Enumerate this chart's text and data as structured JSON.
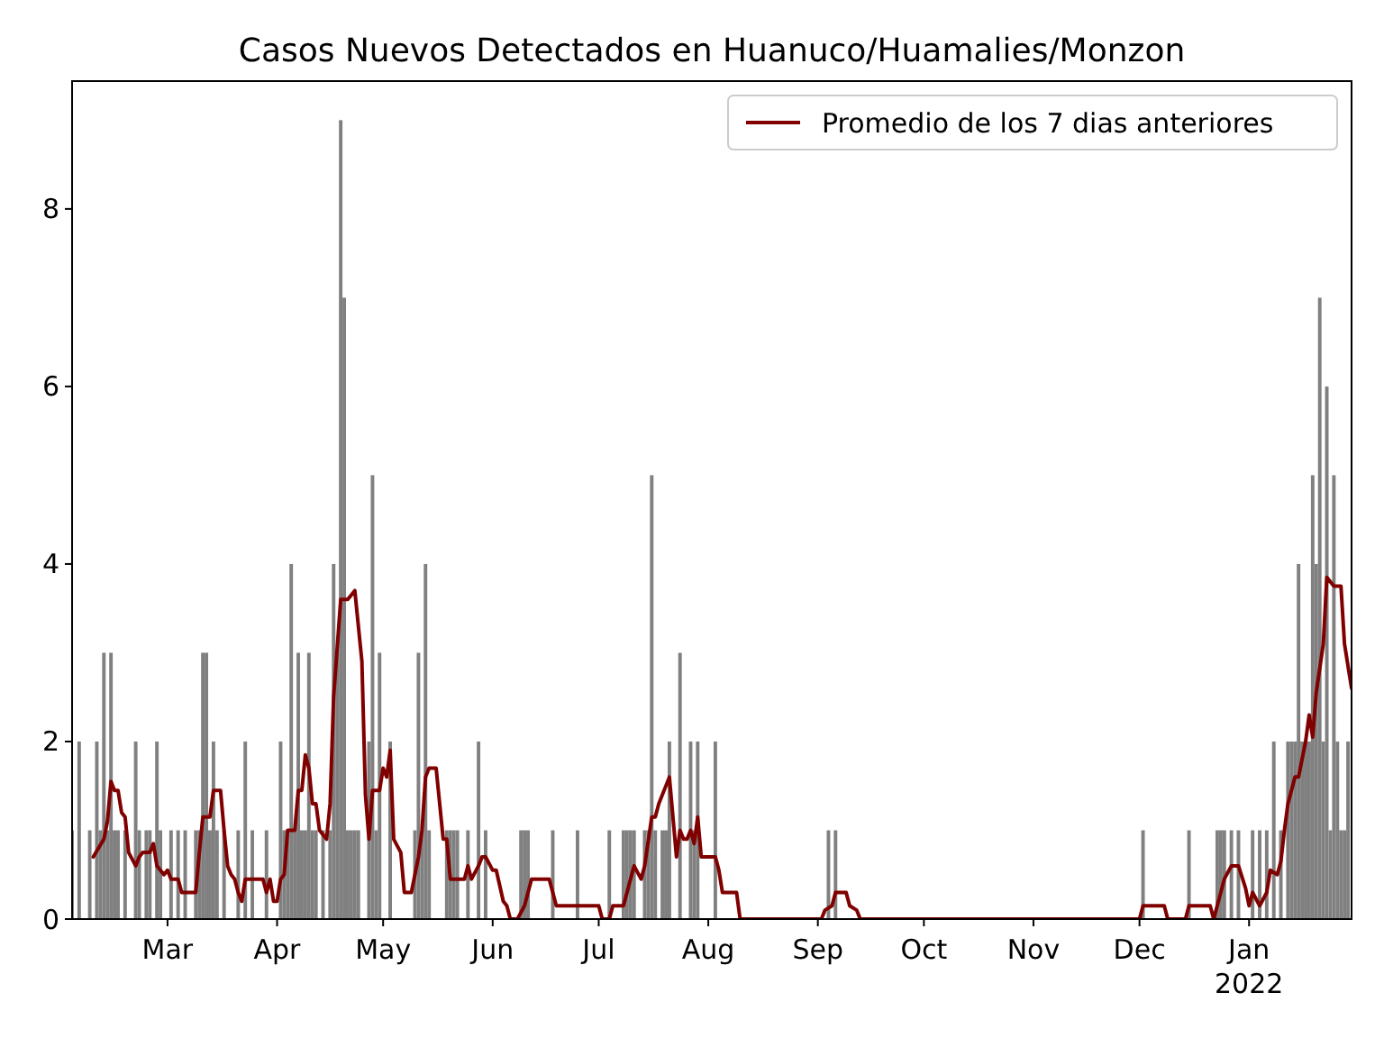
{
  "chart_data": {
    "type": "bar",
    "title": "Casos Nuevos Detectados en Huanuco/Huamalies/Monzon",
    "xlim": [
      "2021-02-02",
      "2022-01-30"
    ],
    "ylim": [
      0,
      9.44
    ],
    "yticks": [
      0,
      2,
      4,
      6,
      8
    ],
    "xticks": [
      {
        "value": "2021-03-01",
        "label": "Mar"
      },
      {
        "value": "2021-04-01",
        "label": "Apr"
      },
      {
        "value": "2021-05-01",
        "label": "May"
      },
      {
        "value": "2021-06-01",
        "label": "Jun"
      },
      {
        "value": "2021-07-01",
        "label": "Jul"
      },
      {
        "value": "2021-08-01",
        "label": "Aug"
      },
      {
        "value": "2021-09-01",
        "label": "Sep"
      },
      {
        "value": "2021-10-01",
        "label": "Oct"
      },
      {
        "value": "2021-11-01",
        "label": "Nov"
      },
      {
        "value": "2021-12-01",
        "label": "Dec"
      },
      {
        "value": "2022-01-01",
        "label": "Jan\n2022"
      }
    ],
    "legend": "top right",
    "grid": false,
    "series": [
      {
        "color": "#808080",
        "x": [
          "2021-02-02",
          "2021-02-04",
          "2021-02-07",
          "2021-02-09",
          "2021-02-10",
          "2021-02-11",
          "2021-02-12",
          "2021-02-13",
          "2021-02-14",
          "2021-02-15",
          "2021-02-17",
          "2021-02-20",
          "2021-02-21",
          "2021-02-23",
          "2021-02-24",
          "2021-02-26",
          "2021-02-27",
          "2021-03-02",
          "2021-03-04",
          "2021-03-06",
          "2021-03-09",
          "2021-03-10",
          "2021-03-11",
          "2021-03-12",
          "2021-03-13",
          "2021-03-14",
          "2021-03-15",
          "2021-03-17",
          "2021-03-21",
          "2021-03-23",
          "2021-03-25",
          "2021-03-29",
          "2021-04-02",
          "2021-04-03",
          "2021-04-04",
          "2021-04-05",
          "2021-04-06",
          "2021-04-07",
          "2021-04-08",
          "2021-04-09",
          "2021-04-10",
          "2021-04-11",
          "2021-04-12",
          "2021-04-14",
          "2021-04-16",
          "2021-04-17",
          "2021-04-18",
          "2021-04-19",
          "2021-04-20",
          "2021-04-21",
          "2021-04-22",
          "2021-04-23",
          "2021-04-24",
          "2021-04-27",
          "2021-04-28",
          "2021-04-29",
          "2021-04-30",
          "2021-05-03",
          "2021-05-10",
          "2021-05-11",
          "2021-05-12",
          "2021-05-13",
          "2021-05-14",
          "2021-05-19",
          "2021-05-20",
          "2021-05-21",
          "2021-05-22",
          "2021-05-25",
          "2021-05-28",
          "2021-05-30",
          "2021-06-09",
          "2021-06-10",
          "2021-06-11",
          "2021-06-18",
          "2021-06-25",
          "2021-07-04",
          "2021-07-08",
          "2021-07-09",
          "2021-07-10",
          "2021-07-11",
          "2021-07-14",
          "2021-07-15",
          "2021-07-16",
          "2021-07-17",
          "2021-07-19",
          "2021-07-20",
          "2021-07-21",
          "2021-07-24",
          "2021-07-27",
          "2021-07-28",
          "2021-07-29",
          "2021-08-03",
          "2021-09-04",
          "2021-09-06",
          "2021-12-02",
          "2021-12-15",
          "2021-12-23",
          "2021-12-24",
          "2021-12-25",
          "2021-12-27",
          "2021-12-29",
          "2022-01-02",
          "2022-01-04",
          "2022-01-06",
          "2022-01-08",
          "2022-01-10",
          "2022-01-12",
          "2022-01-13",
          "2022-01-14",
          "2022-01-15",
          "2022-01-16",
          "2022-01-17",
          "2022-01-18",
          "2022-01-19",
          "2022-01-20",
          "2022-01-21",
          "2022-01-22",
          "2022-01-23",
          "2022-01-24",
          "2022-01-25",
          "2022-01-26",
          "2022-01-27",
          "2022-01-28",
          "2022-01-29"
        ],
        "values": [
          1,
          2,
          1,
          2,
          1,
          3,
          1,
          3,
          1,
          1,
          1,
          2,
          1,
          1,
          1,
          2,
          1,
          1,
          1,
          1,
          1,
          1,
          3,
          3,
          1,
          2,
          1,
          1,
          1,
          2,
          1,
          1,
          2,
          1,
          1,
          4,
          1,
          3,
          1,
          1,
          3,
          1,
          1,
          1,
          1,
          4,
          3,
          9,
          7,
          1,
          1,
          1,
          1,
          2,
          5,
          1,
          3,
          2,
          1,
          3,
          1,
          4,
          1,
          1,
          1,
          1,
          1,
          1,
          2,
          1,
          1,
          1,
          1,
          1,
          1,
          1,
          1,
          1,
          1,
          1,
          1,
          1,
          5,
          1,
          1,
          1,
          2,
          3,
          2,
          1,
          2,
          2,
          1,
          1,
          1,
          1,
          1,
          1,
          1,
          1,
          1,
          1,
          1,
          1,
          2,
          1,
          2,
          2,
          2,
          4,
          2,
          2,
          2,
          5,
          4,
          7,
          2,
          6,
          1,
          5,
          2,
          1,
          1,
          2
        ]
      },
      {
        "type": "line",
        "name": "Promedio de los 7 dias anteriores",
        "color": "#800000",
        "x": [
          "2021-02-08",
          "2021-02-11",
          "2021-02-12",
          "2021-02-13",
          "2021-02-14",
          "2021-02-15",
          "2021-02-16",
          "2021-02-17",
          "2021-02-18",
          "2021-02-20",
          "2021-02-21",
          "2021-02-22",
          "2021-02-24",
          "2021-02-25",
          "2021-02-26",
          "2021-02-28",
          "2021-03-01",
          "2021-03-02",
          "2021-03-04",
          "2021-03-05",
          "2021-03-09",
          "2021-03-10",
          "2021-03-11",
          "2021-03-13",
          "2021-03-14",
          "2021-03-16",
          "2021-03-17",
          "2021-03-18",
          "2021-03-19",
          "2021-03-20",
          "2021-03-21",
          "2021-03-22",
          "2021-03-23",
          "2021-03-28",
          "2021-03-29",
          "2021-03-30",
          "2021-03-31",
          "2021-04-01",
          "2021-04-02",
          "2021-04-03",
          "2021-04-04",
          "2021-04-06",
          "2021-04-07",
          "2021-04-08",
          "2021-04-09",
          "2021-04-10",
          "2021-04-11",
          "2021-04-12",
          "2021-04-13",
          "2021-04-15",
          "2021-04-16",
          "2021-04-17",
          "2021-04-19",
          "2021-04-21",
          "2021-04-23",
          "2021-04-25",
          "2021-04-26",
          "2021-04-27",
          "2021-04-28",
          "2021-04-30",
          "2021-05-01",
          "2021-05-02",
          "2021-05-03",
          "2021-05-04",
          "2021-05-06",
          "2021-05-07",
          "2021-05-09",
          "2021-05-11",
          "2021-05-12",
          "2021-05-13",
          "2021-05-14",
          "2021-05-16",
          "2021-05-18",
          "2021-05-19",
          "2021-05-20",
          "2021-05-24",
          "2021-05-25",
          "2021-05-26",
          "2021-05-28",
          "2021-05-29",
          "2021-05-30",
          "2021-06-01",
          "2021-06-02",
          "2021-06-04",
          "2021-06-05",
          "2021-06-06",
          "2021-06-08",
          "2021-06-10",
          "2021-06-12",
          "2021-06-17",
          "2021-06-18",
          "2021-06-19",
          "2021-07-01",
          "2021-07-02",
          "2021-07-04",
          "2021-07-05",
          "2021-07-08",
          "2021-07-10",
          "2021-07-11",
          "2021-07-13",
          "2021-07-14",
          "2021-07-16",
          "2021-07-17",
          "2021-07-18",
          "2021-07-21",
          "2021-07-23",
          "2021-07-24",
          "2021-07-25",
          "2021-07-26",
          "2021-07-27",
          "2021-07-28",
          "2021-07-29",
          "2021-07-30",
          "2021-08-03",
          "2021-08-04",
          "2021-08-05",
          "2021-08-09",
          "2021-08-10",
          "2021-09-02",
          "2021-09-03",
          "2021-09-05",
          "2021-09-06",
          "2021-09-09",
          "2021-09-10",
          "2021-09-12",
          "2021-09-13",
          "2021-12-01",
          "2021-12-02",
          "2021-12-08",
          "2021-12-09",
          "2021-12-14",
          "2021-12-15",
          "2021-12-21",
          "2021-12-22",
          "2021-12-24",
          "2021-12-25",
          "2021-12-27",
          "2021-12-29",
          "2021-12-31",
          "2022-01-01",
          "2022-01-02",
          "2022-01-04",
          "2022-01-06",
          "2022-01-07",
          "2022-01-09",
          "2022-01-10",
          "2022-01-11",
          "2022-01-12",
          "2022-01-14",
          "2022-01-15",
          "2022-01-17",
          "2022-01-18",
          "2022-01-19",
          "2022-01-20",
          "2022-01-22",
          "2022-01-23",
          "2022-01-25",
          "2022-01-27",
          "2022-01-28",
          "2022-01-30"
        ],
        "values": [
          0.7,
          0.9,
          1.1,
          1.55,
          1.45,
          1.45,
          1.2,
          1.15,
          0.75,
          0.6,
          0.7,
          0.75,
          0.75,
          0.85,
          0.6,
          0.5,
          0.55,
          0.45,
          0.45,
          0.3,
          0.3,
          0.75,
          1.15,
          1.15,
          1.45,
          1.45,
          1.0,
          0.6,
          0.5,
          0.45,
          0.3,
          0.2,
          0.45,
          0.45,
          0.3,
          0.45,
          0.2,
          0.2,
          0.45,
          0.5,
          1.0,
          1.0,
          1.45,
          1.45,
          1.85,
          1.7,
          1.3,
          1.3,
          1.0,
          0.9,
          1.3,
          2.5,
          3.6,
          3.6,
          3.7,
          2.9,
          1.4,
          0.9,
          1.45,
          1.45,
          1.7,
          1.6,
          1.9,
          0.9,
          0.75,
          0.3,
          0.3,
          0.7,
          1.0,
          1.6,
          1.7,
          1.7,
          0.9,
          0.9,
          0.45,
          0.45,
          0.6,
          0.45,
          0.6,
          0.7,
          0.7,
          0.55,
          0.55,
          0.2,
          0.15,
          0,
          0,
          0.15,
          0.45,
          0.45,
          0.3,
          0.15,
          0.15,
          0,
          0,
          0.15,
          0.15,
          0.45,
          0.6,
          0.45,
          0.6,
          1.15,
          1.15,
          1.3,
          1.6,
          0.7,
          1.0,
          0.9,
          0.9,
          1.0,
          0.85,
          1.15,
          0.7,
          0.7,
          0.55,
          0.3,
          0.3,
          0,
          0,
          0.1,
          0.15,
          0.3,
          0.3,
          0.15,
          0.1,
          0,
          0,
          0.15,
          0.15,
          0,
          0,
          0.15,
          0.15,
          0,
          0.3,
          0.45,
          0.6,
          0.6,
          0.35,
          0.15,
          0.3,
          0.15,
          0.3,
          0.55,
          0.5,
          0.65,
          1.0,
          1.3,
          1.6,
          1.6,
          2.0,
          2.3,
          2.05,
          2.55,
          3.1,
          3.85,
          3.75,
          3.75,
          3.1,
          2.6
        ]
      }
    ]
  }
}
